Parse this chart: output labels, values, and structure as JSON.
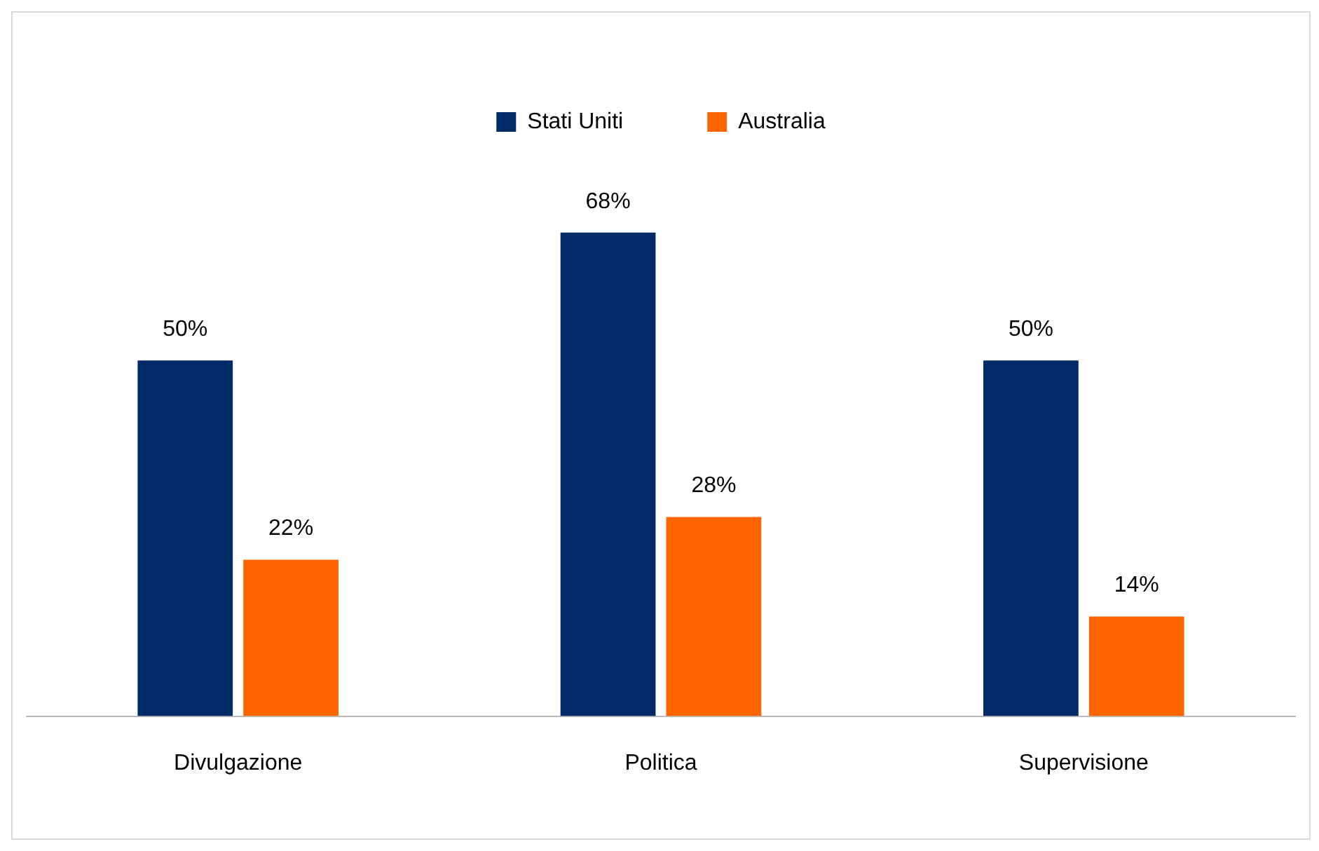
{
  "chart_data": {
    "type": "bar",
    "categories": [
      "Divulgazione",
      "Politica",
      "Supervisione"
    ],
    "series": [
      {
        "name": "Stati Uniti",
        "color": "#002b66",
        "values": [
          50,
          68,
          50
        ],
        "value_labels": [
          "50%",
          "68%",
          "50%"
        ]
      },
      {
        "name": "Australia",
        "color": "#ff6600",
        "values": [
          22,
          28,
          14
        ],
        "value_labels": [
          "22%",
          "28%",
          "14%"
        ]
      }
    ],
    "legend": "top",
    "grid": false
  }
}
